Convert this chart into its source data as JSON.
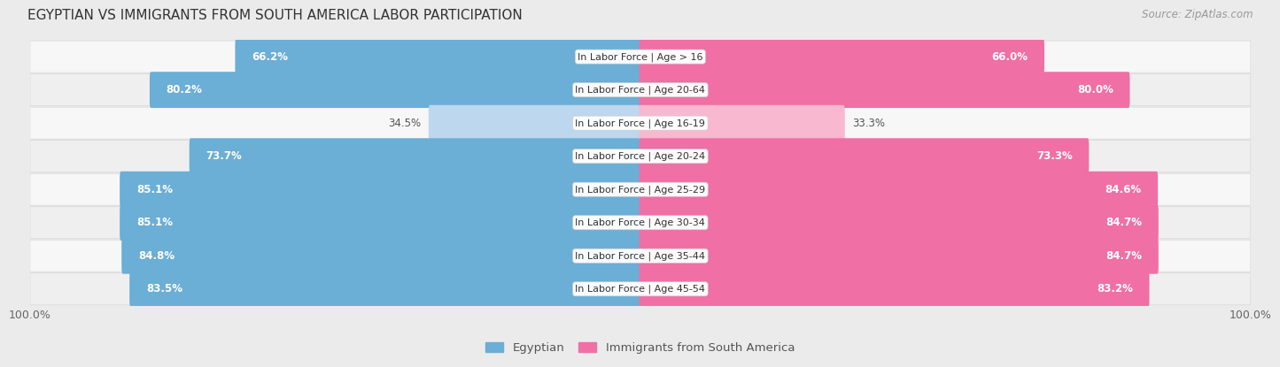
{
  "title": "EGYPTIAN VS IMMIGRANTS FROM SOUTH AMERICA LABOR PARTICIPATION",
  "source": "Source: ZipAtlas.com",
  "categories": [
    "In Labor Force | Age > 16",
    "In Labor Force | Age 20-64",
    "In Labor Force | Age 16-19",
    "In Labor Force | Age 20-24",
    "In Labor Force | Age 25-29",
    "In Labor Force | Age 30-34",
    "In Labor Force | Age 35-44",
    "In Labor Force | Age 45-54"
  ],
  "egyptian_values": [
    66.2,
    80.2,
    34.5,
    73.7,
    85.1,
    85.1,
    84.8,
    83.5
  ],
  "immigrant_values": [
    66.0,
    80.0,
    33.3,
    73.3,
    84.6,
    84.7,
    84.7,
    83.2
  ],
  "egyptian_labels": [
    "66.2%",
    "80.2%",
    "34.5%",
    "73.7%",
    "85.1%",
    "85.1%",
    "84.8%",
    "83.5%"
  ],
  "immigrant_labels": [
    "66.0%",
    "80.0%",
    "33.3%",
    "73.3%",
    "84.6%",
    "84.7%",
    "84.7%",
    "83.2%"
  ],
  "egyptian_color_strong": "#6BAED6",
  "egyptian_color_light": "#BDD7EE",
  "immigrant_color_strong": "#F06FA4",
  "immigrant_color_light": "#F7B8D0",
  "bg_color": "#ebebeb",
  "row_bg_light": "#f5f5f5",
  "row_bg_dark": "#e8e8e8",
  "max_value": 100.0,
  "bar_height": 0.68,
  "legend_egyptian": "Egyptian",
  "legend_immigrant": "Immigrants from South America"
}
